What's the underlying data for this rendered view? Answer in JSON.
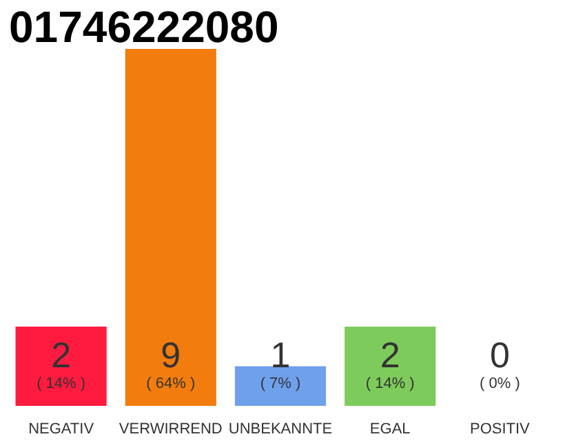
{
  "chart_data": {
    "type": "bar",
    "title": "01746222080",
    "categories": [
      "NEGATIV",
      "VERWIRREND",
      "UNBEKANNTE",
      "EGAL",
      "POSITIV"
    ],
    "values": [
      2,
      9,
      1,
      2,
      0
    ],
    "colors": [
      "#ff1a40",
      "#f27c0e",
      "#6fa0ec",
      "#7dcb5a",
      "#cccccc"
    ],
    "relative": false,
    "ylim": [
      0,
      9
    ],
    "data_labels": true,
    "grid": false,
    "annotations": [
      "( 14% )",
      "( 64% )",
      "( 7% )",
      "( 14% )",
      "( 0% )"
    ]
  }
}
